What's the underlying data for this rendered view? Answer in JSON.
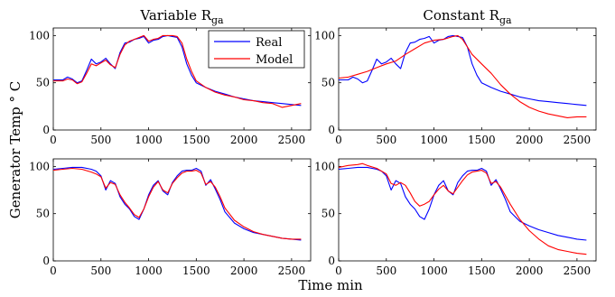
{
  "figure": {
    "ylabel": "Generator Temp ° C",
    "xlabel": "Time min",
    "colors": {
      "real": "#0000ff",
      "model": "#ff0000",
      "axis": "#000000",
      "background": "#ffffff"
    }
  },
  "chart_data": [
    {
      "type": "line",
      "title_main": "Variable R",
      "title_sub": "ga",
      "xlim": [
        0,
        2700
      ],
      "ylim": [
        0,
        108
      ],
      "xticks": [
        0,
        500,
        1000,
        1500,
        2000,
        2500
      ],
      "yticks": [
        0,
        50,
        100
      ],
      "legend": {
        "position": "top-right",
        "entries": [
          "Real",
          "Model"
        ]
      },
      "series": [
        {
          "name": "Real",
          "color": "#0000ff",
          "x": [
            0,
            100,
            150,
            200,
            250,
            300,
            350,
            400,
            450,
            500,
            550,
            600,
            650,
            700,
            750,
            800,
            850,
            900,
            950,
            1000,
            1050,
            1100,
            1150,
            1200,
            1250,
            1300,
            1350,
            1400,
            1450,
            1500,
            1600,
            1700,
            1800,
            1900,
            2000,
            2100,
            2200,
            2300,
            2400,
            2500,
            2600
          ],
          "y": [
            53,
            53,
            56,
            54,
            50,
            52,
            63,
            75,
            70,
            72,
            76,
            70,
            65,
            82,
            92,
            93,
            96,
            97,
            99,
            92,
            95,
            96,
            99,
            100,
            99,
            98,
            88,
            70,
            58,
            50,
            45,
            41,
            38,
            35,
            33,
            31,
            30,
            29,
            28,
            27,
            26
          ]
        },
        {
          "name": "Model",
          "color": "#ff0000",
          "x": [
            0,
            100,
            150,
            200,
            250,
            300,
            350,
            400,
            450,
            500,
            550,
            600,
            650,
            700,
            750,
            800,
            850,
            900,
            950,
            1000,
            1050,
            1100,
            1150,
            1200,
            1250,
            1300,
            1350,
            1400,
            1450,
            1500,
            1600,
            1700,
            1800,
            1900,
            2000,
            2100,
            2200,
            2300,
            2400,
            2500,
            2600
          ],
          "y": [
            52,
            52,
            54,
            53,
            49,
            51,
            60,
            70,
            68,
            71,
            74,
            69,
            66,
            80,
            90,
            94,
            96,
            98,
            100,
            94,
            96,
            97,
            100,
            100,
            100,
            99,
            92,
            75,
            62,
            52,
            45,
            40,
            37,
            35,
            32,
            31,
            29,
            28,
            24,
            26,
            28
          ]
        }
      ]
    },
    {
      "type": "line",
      "title_main": "Constant R",
      "title_sub": "ga",
      "xlim": [
        0,
        2700
      ],
      "ylim": [
        0,
        108
      ],
      "xticks": [
        0,
        500,
        1000,
        1500,
        2000,
        2500
      ],
      "yticks": [
        0,
        50,
        100
      ],
      "series": [
        {
          "name": "Real",
          "color": "#0000ff",
          "x": [
            0,
            100,
            150,
            200,
            250,
            300,
            350,
            400,
            450,
            500,
            550,
            600,
            650,
            700,
            750,
            800,
            850,
            900,
            950,
            1000,
            1050,
            1100,
            1150,
            1200,
            1250,
            1300,
            1350,
            1400,
            1450,
            1500,
            1600,
            1700,
            1800,
            1900,
            2000,
            2100,
            2200,
            2300,
            2400,
            2500,
            2600
          ],
          "y": [
            53,
            53,
            56,
            54,
            50,
            52,
            63,
            75,
            70,
            72,
            76,
            70,
            65,
            82,
            92,
            93,
            96,
            97,
            99,
            92,
            95,
            96,
            99,
            100,
            99,
            98,
            88,
            70,
            58,
            50,
            45,
            41,
            38,
            35,
            33,
            31,
            30,
            29,
            28,
            27,
            26
          ]
        },
        {
          "name": "Model",
          "color": "#ff0000",
          "x": [
            0,
            100,
            200,
            300,
            400,
            500,
            600,
            700,
            800,
            900,
            1000,
            1100,
            1200,
            1250,
            1300,
            1350,
            1400,
            1500,
            1600,
            1700,
            1800,
            1900,
            2000,
            2100,
            2200,
            2300,
            2400,
            2500,
            2600
          ],
          "y": [
            55,
            56,
            59,
            62,
            66,
            70,
            73,
            80,
            86,
            92,
            95,
            96,
            99,
            100,
            96,
            88,
            80,
            70,
            60,
            48,
            38,
            30,
            24,
            20,
            17,
            15,
            13,
            14,
            14
          ]
        }
      ]
    },
    {
      "type": "line",
      "xlim": [
        0,
        2700
      ],
      "ylim": [
        0,
        108
      ],
      "xticks": [
        0,
        500,
        1000,
        1500,
        2000,
        2500
      ],
      "yticks": [
        0,
        50,
        100
      ],
      "series": [
        {
          "name": "Real",
          "color": "#0000ff",
          "x": [
            0,
            100,
            200,
            300,
            400,
            450,
            500,
            550,
            600,
            650,
            700,
            750,
            800,
            850,
            900,
            950,
            1000,
            1050,
            1100,
            1150,
            1200,
            1250,
            1300,
            1350,
            1400,
            1450,
            1500,
            1550,
            1600,
            1650,
            1700,
            1750,
            1800,
            1900,
            2000,
            2100,
            2200,
            2300,
            2400,
            2500,
            2600
          ],
          "y": [
            97,
            98,
            99,
            99,
            97,
            95,
            90,
            75,
            85,
            82,
            68,
            60,
            55,
            47,
            44,
            55,
            70,
            80,
            85,
            74,
            70,
            83,
            90,
            95,
            96,
            96,
            98,
            95,
            80,
            86,
            76,
            65,
            52,
            40,
            34,
            30,
            28,
            26,
            24,
            23,
            22
          ]
        },
        {
          "name": "Model",
          "color": "#ff0000",
          "x": [
            0,
            100,
            200,
            300,
            400,
            450,
            500,
            550,
            600,
            650,
            700,
            750,
            800,
            850,
            900,
            950,
            1000,
            1050,
            1100,
            1150,
            1200,
            1250,
            1300,
            1350,
            1400,
            1450,
            1500,
            1550,
            1600,
            1650,
            1700,
            1750,
            1800,
            1900,
            2000,
            2100,
            2200,
            2300,
            2400,
            2500,
            2600
          ],
          "y": [
            96,
            97,
            98,
            97,
            94,
            92,
            89,
            77,
            83,
            81,
            70,
            62,
            56,
            49,
            46,
            55,
            68,
            78,
            84,
            75,
            72,
            82,
            88,
            93,
            95,
            95,
            96,
            93,
            81,
            84,
            78,
            68,
            56,
            43,
            36,
            31,
            28,
            26,
            24,
            23,
            23
          ]
        }
      ]
    },
    {
      "type": "line",
      "xlim": [
        0,
        2700
      ],
      "ylim": [
        0,
        108
      ],
      "xticks": [
        0,
        500,
        1000,
        1500,
        2000,
        2500
      ],
      "yticks": [
        0,
        50,
        100
      ],
      "series": [
        {
          "name": "Real",
          "color": "#0000ff",
          "x": [
            0,
            100,
            200,
            300,
            400,
            450,
            500,
            550,
            600,
            650,
            700,
            750,
            800,
            850,
            900,
            950,
            1000,
            1050,
            1100,
            1150,
            1200,
            1250,
            1300,
            1350,
            1400,
            1450,
            1500,
            1550,
            1600,
            1650,
            1700,
            1750,
            1800,
            1900,
            2000,
            2100,
            2200,
            2300,
            2400,
            2500,
            2600
          ],
          "y": [
            97,
            98,
            99,
            99,
            97,
            95,
            90,
            75,
            85,
            82,
            68,
            60,
            55,
            47,
            44,
            55,
            70,
            80,
            85,
            74,
            70,
            83,
            90,
            95,
            96,
            96,
            98,
            95,
            80,
            86,
            76,
            65,
            52,
            42,
            37,
            33,
            30,
            27,
            25,
            23,
            22
          ]
        },
        {
          "name": "Model",
          "color": "#ff0000",
          "x": [
            0,
            100,
            200,
            250,
            300,
            400,
            500,
            550,
            600,
            650,
            700,
            750,
            800,
            850,
            900,
            950,
            1000,
            1050,
            1100,
            1150,
            1200,
            1250,
            1300,
            1350,
            1400,
            1450,
            1500,
            1550,
            1600,
            1650,
            1700,
            1800,
            1900,
            2000,
            2100,
            2200,
            2300,
            2400,
            2500,
            2600
          ],
          "y": [
            99,
            101,
            102,
            103,
            101,
            98,
            92,
            82,
            80,
            83,
            80,
            72,
            63,
            58,
            60,
            63,
            70,
            76,
            80,
            74,
            71,
            78,
            85,
            91,
            94,
            95,
            96,
            93,
            82,
            84,
            78,
            60,
            44,
            32,
            23,
            16,
            12,
            10,
            8,
            7
          ]
        }
      ]
    }
  ]
}
